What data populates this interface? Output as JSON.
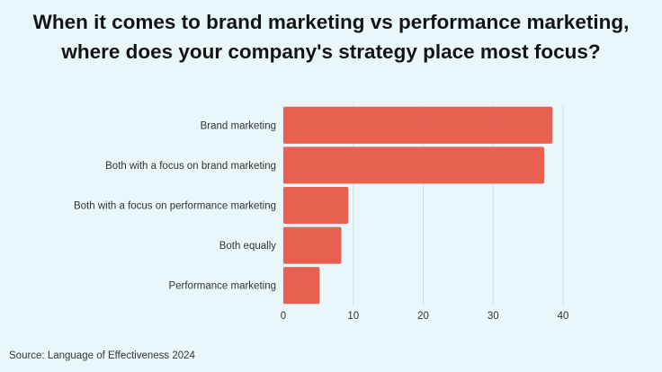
{
  "title_lines": [
    "When it comes to brand marketing vs performance marketing,",
    "where does your company's strategy place most focus?"
  ],
  "source": "Source: Language of Effectiveness 2024",
  "chart_data": {
    "type": "bar",
    "orientation": "horizontal",
    "title": "When it comes to brand marketing vs performance marketing, where does your company's strategy place most focus?",
    "categories": [
      "Brand marketing",
      "Both with a focus on brand marketing",
      "Both with a focus on performance marketing",
      "Both equally",
      "Performance marketing"
    ],
    "values": [
      38.5,
      37.3,
      9.3,
      8.3,
      5.2
    ],
    "xticks": [
      0,
      10,
      20,
      30,
      40
    ],
    "xlim": [
      0,
      40
    ],
    "grid": true,
    "legend": "none",
    "bar_color": "#e8604f"
  }
}
